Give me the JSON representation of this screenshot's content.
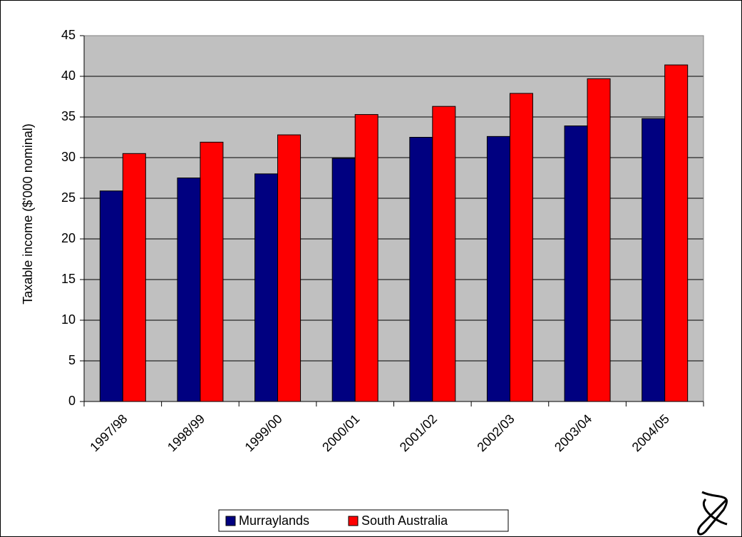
{
  "chart_data": {
    "type": "bar",
    "y_label": "Taxable income ($'000 nominal)",
    "categories": [
      "1997/98",
      "1998/99",
      "1999/00",
      "2000/01",
      "2001/02",
      "2002/03",
      "2003/04",
      "2004/05"
    ],
    "series": [
      {
        "name": "Murraylands",
        "color": "#000080",
        "values": [
          25.9,
          27.5,
          28.0,
          29.9,
          32.5,
          32.6,
          33.9,
          34.8
        ]
      },
      {
        "name": "South Australia",
        "color": "#ff0000",
        "values": [
          30.5,
          31.9,
          32.8,
          35.3,
          36.3,
          37.9,
          39.7,
          41.4
        ]
      }
    ],
    "ylim": [
      0,
      45
    ],
    "yticks": [
      0,
      5,
      10,
      15,
      20,
      25,
      30,
      35,
      40,
      45
    ],
    "grid": true,
    "plot_background": "#c0c0c0",
    "legend": "bottom"
  }
}
